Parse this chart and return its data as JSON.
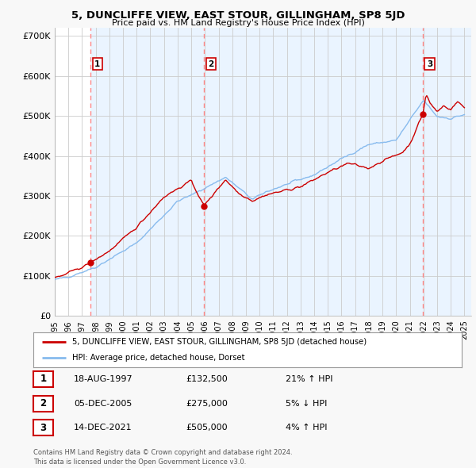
{
  "title": "5, DUNCLIFFE VIEW, EAST STOUR, GILLINGHAM, SP8 5JD",
  "subtitle": "Price paid vs. HM Land Registry's House Price Index (HPI)",
  "background_color": "#f8f8f8",
  "plot_bg_color": "#ffffff",
  "shade_color": "#ddeeff",
  "ylim": [
    0,
    720000
  ],
  "yticks": [
    0,
    100000,
    200000,
    300000,
    400000,
    500000,
    600000,
    700000
  ],
  "ytick_labels": [
    "£0",
    "£100K",
    "£200K",
    "£300K",
    "£400K",
    "£500K",
    "£600K",
    "£700K"
  ],
  "sale_dates": [
    1997.62,
    2005.92,
    2021.95
  ],
  "sale_prices": [
    132500,
    275000,
    505000
  ],
  "sale_labels": [
    "1",
    "2",
    "3"
  ],
  "hpi_color": "#88bbee",
  "sale_line_color": "#cc0000",
  "sale_marker_color": "#cc0000",
  "dashed_line_color": "#ff8888",
  "grid_color": "#cccccc",
  "legend_entries": [
    "5, DUNCLIFFE VIEW, EAST STOUR, GILLINGHAM, SP8 5JD (detached house)",
    "HPI: Average price, detached house, Dorset"
  ],
  "table_rows": [
    [
      "1",
      "18-AUG-1997",
      "£132,500",
      "21% ↑ HPI"
    ],
    [
      "2",
      "05-DEC-2005",
      "£275,000",
      "5% ↓ HPI"
    ],
    [
      "3",
      "14-DEC-2021",
      "£505,000",
      "4% ↑ HPI"
    ]
  ],
  "footer": "Contains HM Land Registry data © Crown copyright and database right 2024.\nThis data is licensed under the Open Government Licence v3.0.",
  "xlim_start": 1995.0,
  "xlim_end": 2025.5,
  "xtick_years": [
    1995,
    1996,
    1997,
    1998,
    1999,
    2000,
    2001,
    2002,
    2003,
    2004,
    2005,
    2006,
    2007,
    2008,
    2009,
    2010,
    2011,
    2012,
    2013,
    2014,
    2015,
    2016,
    2017,
    2018,
    2019,
    2020,
    2021,
    2022,
    2023,
    2024,
    2025
  ]
}
